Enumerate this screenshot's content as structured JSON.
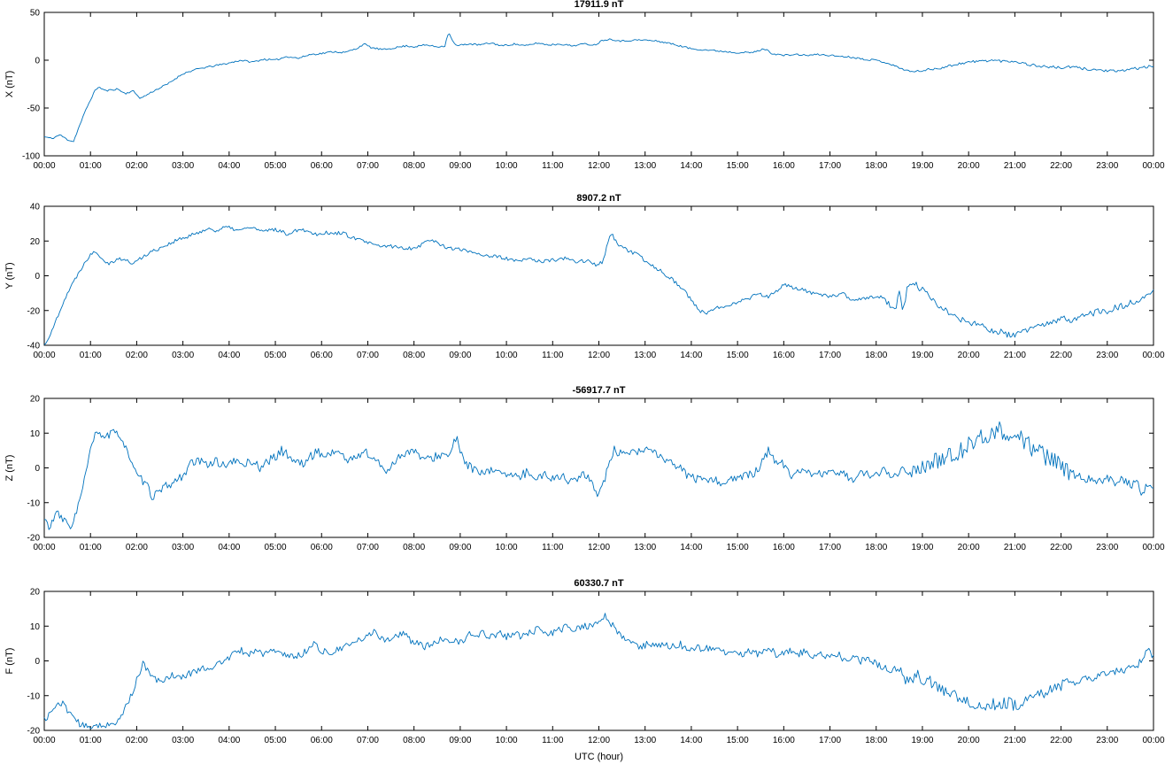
{
  "figure": {
    "background": "#ffffff",
    "line_color": "#0072BD",
    "axis_color": "#000000",
    "xlabel": "UTC (hour)",
    "x_tick_labels": [
      "00:00",
      "01:00",
      "02:00",
      "03:00",
      "04:00",
      "05:00",
      "06:00",
      "07:00",
      "08:00",
      "09:00",
      "10:00",
      "11:00",
      "12:00",
      "13:00",
      "14:00",
      "15:00",
      "16:00",
      "17:00",
      "18:00",
      "19:00",
      "20:00",
      "21:00",
      "22:00",
      "23:00",
      "00:00"
    ]
  },
  "chart_data": [
    {
      "type": "line",
      "title": "17911.9 nT",
      "ylabel": "X (nT)",
      "ylim": [
        -100,
        50
      ],
      "yticks": [
        -100,
        -50,
        0,
        50
      ],
      "x_range_minutes": [
        0,
        1440
      ],
      "noise": 0.9,
      "noise_boost": {
        "from": 1140,
        "to": 1440,
        "factor": 1.6
      },
      "seed": 11,
      "keypoints": {
        "t": [
          0,
          10,
          20,
          30,
          38,
          45,
          55,
          65,
          70,
          80,
          95,
          105,
          115,
          125,
          140,
          160,
          180,
          200,
          220,
          240,
          255,
          270,
          285,
          300,
          315,
          330,
          345,
          360,
          375,
          390,
          405,
          415,
          425,
          440,
          455,
          470,
          480,
          495,
          510,
          520,
          525,
          530,
          535,
          550,
          565,
          580,
          595,
          610,
          625,
          640,
          655,
          670,
          685,
          700,
          715,
          725,
          735,
          750,
          765,
          780,
          795,
          810,
          825,
          840,
          855,
          870,
          885,
          900,
          920,
          935,
          945,
          960,
          975,
          990,
          1005,
          1020,
          1035,
          1050,
          1065,
          1080,
          1095,
          1110,
          1125,
          1140,
          1155,
          1170,
          1185,
          1200,
          1215,
          1230,
          1245,
          1260,
          1275,
          1290,
          1305,
          1320,
          1335,
          1350,
          1365,
          1380,
          1395,
          1410,
          1425,
          1440
        ],
        "v": [
          -80,
          -82,
          -78,
          -83,
          -85,
          -70,
          -50,
          -33,
          -28,
          -32,
          -30,
          -35,
          -32,
          -40,
          -33,
          -25,
          -14,
          -9,
          -6,
          -3,
          0,
          -2,
          1,
          0,
          4,
          2,
          6,
          7,
          9,
          8,
          12,
          17,
          13,
          11,
          13,
          15,
          14,
          16,
          14,
          15,
          30,
          20,
          15,
          17,
          16,
          18,
          15,
          17,
          15,
          18,
          16,
          17,
          15,
          17,
          16,
          21,
          22,
          20,
          21,
          21,
          20,
          18,
          15,
          12,
          11,
          10,
          9,
          8,
          8,
          12,
          7,
          5,
          6,
          5,
          6,
          5,
          4,
          3,
          1,
          0,
          -3,
          -8,
          -12,
          -11,
          -9,
          -7,
          -4,
          -2,
          -1,
          0,
          -1,
          -1,
          -4,
          -6,
          -7,
          -8,
          -7,
          -9,
          -10,
          -11,
          -12,
          -9,
          -8,
          -6
        ]
      }
    },
    {
      "type": "line",
      "title": "8907.2 nT",
      "ylabel": "Y (nT)",
      "ylim": [
        -40,
        40
      ],
      "yticks": [
        -40,
        -20,
        0,
        20,
        40
      ],
      "x_range_minutes": [
        0,
        1440
      ],
      "noise": 1.1,
      "noise_boost": {
        "from": 1080,
        "to": 1440,
        "factor": 1.8
      },
      "seed": 22,
      "keypoints": {
        "t": [
          0,
          10,
          20,
          30,
          40,
          50,
          60,
          65,
          75,
          85,
          95,
          105,
          115,
          125,
          135,
          145,
          155,
          165,
          175,
          185,
          195,
          205,
          215,
          225,
          235,
          245,
          255,
          265,
          275,
          285,
          295,
          305,
          315,
          325,
          335,
          345,
          355,
          365,
          375,
          385,
          395,
          405,
          415,
          425,
          435,
          450,
          465,
          480,
          490,
          500,
          510,
          525,
          540,
          555,
          570,
          585,
          600,
          615,
          630,
          645,
          660,
          675,
          690,
          705,
          715,
          725,
          735,
          745,
          755,
          770,
          785,
          800,
          815,
          830,
          840,
          850,
          860,
          870,
          885,
          900,
          915,
          925,
          940,
          955,
          960,
          975,
          990,
          1005,
          1020,
          1035,
          1050,
          1065,
          1080,
          1095,
          1105,
          1110,
          1115,
          1120,
          1130,
          1140,
          1155,
          1170,
          1185,
          1200,
          1215,
          1230,
          1245,
          1255,
          1265,
          1275,
          1290,
          1305,
          1320,
          1335,
          1350,
          1365,
          1380,
          1395,
          1410,
          1425,
          1440
        ],
        "v": [
          -40,
          -32,
          -20,
          -10,
          -2,
          6,
          12,
          15,
          10,
          7,
          10,
          9,
          7,
          10,
          13,
          15,
          17,
          19,
          21,
          22,
          24,
          26,
          27,
          26,
          28,
          27,
          26,
          28,
          27,
          25,
          27,
          26,
          24,
          26,
          27,
          25,
          24,
          25,
          24,
          25,
          23,
          21,
          20,
          18,
          17,
          17,
          16,
          16,
          18,
          21,
          19,
          16,
          15,
          14,
          12,
          11,
          10,
          8,
          10,
          8,
          9,
          10,
          8,
          9,
          6,
          8,
          25,
          18,
          15,
          12,
          7,
          3,
          -2,
          -8,
          -14,
          -20,
          -22,
          -19,
          -17,
          -15,
          -13,
          -10,
          -12,
          -8,
          -5,
          -7,
          -9,
          -11,
          -12,
          -10,
          -14,
          -13,
          -12,
          -15,
          -20,
          -8,
          -22,
          -6,
          -5,
          -8,
          -15,
          -20,
          -24,
          -27,
          -29,
          -31,
          -33,
          -35,
          -33,
          -31,
          -29,
          -28,
          -25,
          -25,
          -23,
          -21,
          -20,
          -18,
          -16,
          -13,
          -7
        ]
      }
    },
    {
      "type": "line",
      "title": "-56917.7 nT",
      "ylabel": "Z (nT)",
      "ylim": [
        -20,
        20
      ],
      "yticks": [
        -20,
        -10,
        0,
        10,
        20
      ],
      "x_range_minutes": [
        0,
        1440
      ],
      "noise": 1.3,
      "noise_boost": {
        "from": 1120,
        "to": 1330,
        "factor": 2.0
      },
      "seed": 33,
      "keypoints": {
        "t": [
          0,
          8,
          15,
          25,
          33,
          40,
          50,
          58,
          65,
          72,
          80,
          90,
          100,
          108,
          115,
          122,
          130,
          140,
          150,
          160,
          170,
          180,
          190,
          200,
          210,
          220,
          230,
          240,
          250,
          260,
          270,
          280,
          290,
          300,
          308,
          315,
          325,
          335,
          345,
          355,
          365,
          375,
          385,
          395,
          405,
          415,
          425,
          435,
          445,
          455,
          465,
          475,
          485,
          495,
          505,
          515,
          525,
          535,
          540,
          550,
          560,
          570,
          580,
          590,
          600,
          610,
          620,
          630,
          640,
          650,
          660,
          670,
          680,
          690,
          700,
          710,
          718,
          725,
          732,
          740,
          748,
          755,
          765,
          775,
          785,
          795,
          805,
          815,
          825,
          835,
          845,
          855,
          865,
          875,
          885,
          895,
          905,
          915,
          925,
          935,
          940,
          948,
          960,
          970,
          980,
          990,
          1000,
          1010,
          1020,
          1030,
          1040,
          1050,
          1060,
          1070,
          1080,
          1090,
          1100,
          1110,
          1120,
          1130,
          1140,
          1150,
          1160,
          1170,
          1180,
          1190,
          1200,
          1210,
          1220,
          1230,
          1240,
          1250,
          1260,
          1270,
          1280,
          1290,
          1300,
          1310,
          1320,
          1330,
          1340,
          1350,
          1360,
          1370,
          1380,
          1390,
          1400,
          1410,
          1420,
          1425,
          1432,
          1440
        ],
        "v": [
          -15,
          -17,
          -13,
          -15,
          -17,
          -14,
          -6,
          3,
          9,
          10,
          9,
          10,
          9,
          5,
          0,
          -3,
          -4,
          -8,
          -7,
          -5,
          -4,
          -2,
          1,
          2,
          1,
          2,
          1,
          1,
          2,
          1,
          2,
          0,
          2,
          3,
          5,
          4,
          2,
          1,
          3,
          5,
          3,
          5,
          4,
          2,
          3,
          5,
          3,
          1,
          -1,
          2,
          4,
          5,
          4,
          2,
          3,
          4,
          3,
          9,
          4,
          1,
          -1,
          -2,
          -1,
          0,
          -2,
          -3,
          -2,
          -1,
          -3,
          -2,
          -3,
          -2,
          -4,
          -3,
          -2,
          -4,
          -7,
          -5,
          0,
          5,
          4,
          3,
          5,
          4,
          6,
          4,
          2,
          1,
          0,
          -2,
          -3,
          -4,
          -3,
          -4,
          -4,
          -3,
          -3,
          -2,
          -1,
          3,
          5,
          2,
          1,
          -2,
          -1,
          -2,
          -1,
          -2,
          -2,
          -1,
          -2,
          -3,
          -2,
          -2,
          -2,
          -1,
          -2,
          -1,
          0,
          -1,
          0,
          1,
          2,
          3,
          4,
          5,
          7,
          8,
          9,
          10,
          11,
          10,
          9,
          8,
          6,
          5,
          3,
          2,
          0,
          -1,
          -2,
          -3,
          -3,
          -4,
          -3,
          -4,
          -3,
          -5,
          -4,
          -8,
          -5,
          -6
        ]
      }
    },
    {
      "type": "line",
      "title": "60330.7 nT",
      "ylabel": "F (nT)",
      "ylim": [
        -20,
        20
      ],
      "yticks": [
        -20,
        -10,
        0,
        10,
        20
      ],
      "x_range_minutes": [
        0,
        1440
      ],
      "noise": 1.0,
      "noise_boost": {
        "from": 1110,
        "to": 1330,
        "factor": 1.8
      },
      "seed": 44,
      "keypoints": {
        "t": [
          0,
          8,
          15,
          22,
          30,
          38,
          45,
          52,
          60,
          68,
          75,
          82,
          90,
          100,
          108,
          115,
          122,
          128,
          135,
          142,
          150,
          158,
          165,
          175,
          185,
          195,
          205,
          215,
          225,
          235,
          245,
          255,
          265,
          275,
          285,
          295,
          305,
          315,
          325,
          335,
          345,
          350,
          360,
          370,
          380,
          390,
          400,
          410,
          420,
          428,
          435,
          445,
          455,
          465,
          475,
          485,
          495,
          505,
          515,
          525,
          535,
          545,
          550,
          560,
          570,
          580,
          590,
          600,
          610,
          620,
          630,
          640,
          650,
          660,
          670,
          680,
          690,
          700,
          710,
          720,
          728,
          735,
          745,
          755,
          765,
          775,
          785,
          795,
          805,
          815,
          825,
          835,
          845,
          855,
          865,
          875,
          885,
          895,
          905,
          915,
          925,
          935,
          940,
          950,
          960,
          970,
          980,
          990,
          1000,
          1010,
          1020,
          1030,
          1040,
          1050,
          1060,
          1070,
          1080,
          1090,
          1100,
          1108,
          1115,
          1122,
          1130,
          1140,
          1150,
          1160,
          1170,
          1180,
          1190,
          1200,
          1210,
          1220,
          1230,
          1240,
          1250,
          1260,
          1270,
          1280,
          1290,
          1300,
          1310,
          1320,
          1330,
          1340,
          1350,
          1360,
          1370,
          1380,
          1390,
          1400,
          1410,
          1420,
          1430,
          1435,
          1440
        ],
        "v": [
          -17,
          -15,
          -13,
          -12,
          -14,
          -16,
          -18,
          -19,
          -19,
          -18,
          -19,
          -18,
          -19,
          -16,
          -12,
          -9,
          -4,
          -1,
          -3,
          -5,
          -6,
          -5,
          -4,
          -5,
          -4,
          -3,
          -2,
          -2,
          -1,
          0,
          2,
          3,
          2,
          3,
          2,
          3,
          2,
          2,
          1,
          2,
          4,
          5,
          3,
          2,
          3,
          4,
          5,
          6,
          7,
          9,
          7,
          6,
          7,
          8,
          6,
          5,
          4,
          5,
          6,
          5,
          6,
          5,
          8,
          7,
          8,
          7,
          8,
          7,
          8,
          7,
          8,
          9,
          8,
          8,
          9,
          10,
          9,
          10,
          10,
          11,
          13,
          11,
          8,
          6,
          5,
          4,
          5,
          4,
          5,
          4,
          5,
          3,
          4,
          3,
          4,
          3,
          2,
          3,
          2,
          3,
          2,
          3,
          4,
          2,
          2,
          3,
          2,
          3,
          1,
          2,
          1,
          2,
          0,
          1,
          0,
          1,
          -1,
          -2,
          -3,
          -2,
          -4,
          -6,
          -4,
          -5,
          -6,
          -8,
          -9,
          -10,
          -11,
          -12,
          -12,
          -13,
          -12,
          -13,
          -12,
          -13,
          -12,
          -11,
          -10,
          -9,
          -8,
          -7,
          -6,
          -6,
          -5,
          -5,
          -4,
          -4,
          -3,
          -3,
          -2,
          -1,
          2,
          3,
          1
        ]
      }
    }
  ]
}
